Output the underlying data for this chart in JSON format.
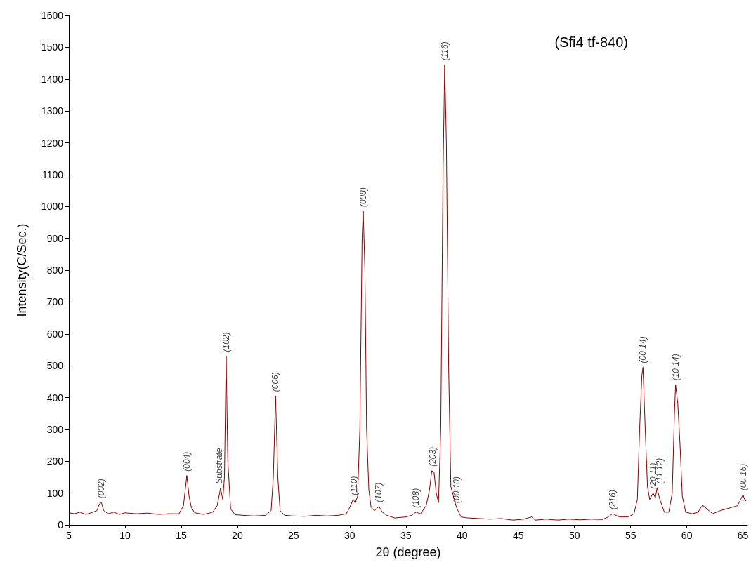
{
  "chart_data": {
    "type": "line",
    "xlabel": "2θ (degree)",
    "ylabel": "Intensity(C/Sec.)",
    "xlim": [
      5,
      65.4
    ],
    "xticks": [
      5,
      10,
      15,
      20,
      25,
      30,
      35,
      40,
      45,
      50,
      55,
      60,
      65
    ],
    "ylim": [
      0,
      1600
    ],
    "yticks": [
      0,
      100,
      200,
      300,
      400,
      500,
      600,
      700,
      800,
      900,
      1000,
      1100,
      1200,
      1300,
      1400,
      1500,
      1600
    ],
    "grid": false,
    "marker": "none",
    "line_style": "solid",
    "series": [
      {
        "color": "#8b0000",
        "x": [
          5,
          5.5,
          6,
          6.5,
          7,
          7.5,
          7.7,
          7.9,
          8.1,
          8.5,
          9,
          9.5,
          10,
          11,
          12,
          13,
          14,
          14.8,
          15.2,
          15.5,
          15.7,
          15.9,
          16.2,
          17,
          17.8,
          18.2,
          18.5,
          18.7,
          18.85,
          19.0,
          19.15,
          19.4,
          19.8,
          20.5,
          21.5,
          22.5,
          23.0,
          23.2,
          23.4,
          23.6,
          23.8,
          24.2,
          25,
          26,
          27,
          28,
          29,
          29.7,
          30.0,
          30.3,
          30.5,
          30.7,
          30.9,
          31.1,
          31.2,
          31.35,
          31.5,
          31.7,
          31.9,
          32.2,
          32.6,
          32.9,
          33.3,
          34,
          35,
          35.5,
          35.9,
          36.3,
          36.8,
          37.1,
          37.3,
          37.5,
          37.7,
          37.9,
          38.1,
          38.3,
          38.45,
          38.6,
          38.8,
          39.0,
          39.3,
          39.5,
          39.9,
          40.5,
          41.5,
          42.5,
          43.5,
          44.5,
          45.5,
          46.2,
          46.5,
          47.5,
          48.5,
          49.5,
          50.5,
          51.5,
          52.5,
          53.0,
          53.4,
          54,
          54.8,
          55.3,
          55.6,
          55.8,
          56.0,
          56.1,
          56.3,
          56.5,
          56.7,
          57.0,
          57.2,
          57.35,
          57.6,
          58.0,
          58.4,
          58.7,
          58.9,
          59.0,
          59.2,
          59.4,
          59.6,
          59.9,
          60.5,
          61.0,
          61.4,
          61.8,
          62.3,
          63,
          63.5,
          64,
          64.5,
          64.8,
          65.0,
          65.2,
          65.4
        ],
        "values": [
          38,
          35,
          40,
          33,
          38,
          45,
          65,
          70,
          45,
          35,
          40,
          33,
          38,
          35,
          37,
          33,
          35,
          35,
          60,
          155,
          90,
          55,
          38,
          33,
          40,
          60,
          115,
          80,
          150,
          530,
          200,
          50,
          32,
          30,
          28,
          30,
          45,
          150,
          405,
          150,
          45,
          30,
          28,
          27,
          30,
          28,
          30,
          35,
          55,
          80,
          70,
          90,
          300,
          900,
          985,
          800,
          300,
          110,
          55,
          45,
          58,
          40,
          30,
          22,
          25,
          30,
          40,
          35,
          60,
          110,
          170,
          165,
          100,
          70,
          300,
          1100,
          1445,
          1200,
          500,
          120,
          80,
          55,
          25,
          22,
          20,
          18,
          20,
          15,
          18,
          25,
          15,
          18,
          15,
          18,
          16,
          18,
          17,
          25,
          35,
          25,
          25,
          35,
          80,
          300,
          470,
          495,
          300,
          120,
          80,
          100,
          85,
          115,
          80,
          40,
          40,
          100,
          350,
          440,
          380,
          250,
          90,
          40,
          35,
          40,
          62,
          50,
          35,
          45,
          50,
          55,
          60,
          80,
          95,
          75,
          80
        ]
      }
    ],
    "annotations": [
      "(Sfi4 tf-840)",
      {
        "text": "(002)",
        "x": 7.9,
        "y": 70
      },
      {
        "text": "(004)",
        "x": 15.5,
        "y": 155
      },
      {
        "text": "Substrate",
        "x": 18.4,
        "y": 115
      },
      {
        "text": "(102)",
        "x": 19.0,
        "y": 530
      },
      {
        "text": "(006)",
        "x": 23.4,
        "y": 405
      },
      {
        "text": "(110)",
        "x": 30.4,
        "y": 80
      },
      {
        "text": "(008)",
        "x": 31.2,
        "y": 985
      },
      {
        "text": "(107)",
        "x": 32.6,
        "y": 58
      },
      {
        "text": "(108)",
        "x": 35.9,
        "y": 40
      },
      {
        "text": "(203)",
        "x": 37.4,
        "y": 170
      },
      {
        "text": "(116)",
        "x": 38.45,
        "y": 1445
      },
      {
        "text": "(00 10)",
        "x": 39.5,
        "y": 55
      },
      {
        "text": "(216)",
        "x": 53.4,
        "y": 35
      },
      {
        "text": "(00 14)",
        "x": 56.1,
        "y": 495
      },
      {
        "text": "(20 11)",
        "x": 57.0,
        "y": 100
      },
      {
        "text": "(11 12)",
        "x": 57.6,
        "y": 115
      },
      {
        "text": "(10 14)",
        "x": 59.0,
        "y": 440
      },
      {
        "text": "(00 16)",
        "x": 65.0,
        "y": 95
      }
    ]
  }
}
